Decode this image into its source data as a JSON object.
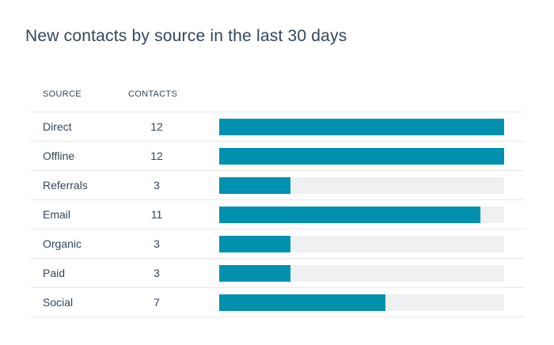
{
  "title": "New contacts by source in the last 30 days",
  "colors": {
    "bar": "#0091ae",
    "track": "#eef0f2",
    "text": "#33475b"
  },
  "table": {
    "headers": {
      "source": "SOURCE",
      "contacts": "CONTACTS"
    }
  },
  "chart_data": {
    "type": "bar",
    "orientation": "horizontal",
    "title": "New contacts by source in the last 30 days",
    "categories": [
      "Direct",
      "Offline",
      "Referrals",
      "Email",
      "Organic",
      "Paid",
      "Social"
    ],
    "values": [
      12,
      12,
      3,
      11,
      3,
      3,
      7
    ],
    "xlim": [
      0,
      12
    ],
    "grid": false,
    "legend": "none"
  }
}
